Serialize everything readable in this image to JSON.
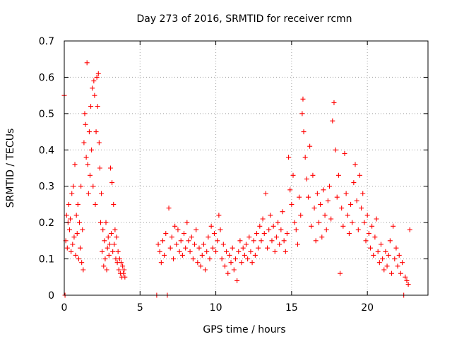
{
  "chart_data": {
    "type": "scatter",
    "title": "Day 273 of 2016, SRMTID for receiver rcmn",
    "xlabel": "GPS time / hours",
    "ylabel": "SRMTID / TECUs",
    "xlim": [
      0,
      24
    ],
    "ylim": [
      0,
      0.7
    ],
    "xticks": [
      0,
      5,
      10,
      15,
      20
    ],
    "yticks": [
      0,
      0.1,
      0.2,
      0.3,
      0.4,
      0.5,
      0.6,
      0.7
    ],
    "ytick_labels": [
      "0",
      "0.1",
      "0.2",
      "0.3",
      "0.4",
      "0.5",
      "0.6",
      "0.7"
    ],
    "grid": true,
    "marker": "+",
    "color": "#ff0000",
    "series": [
      {
        "name": "SRMTID",
        "points": [
          [
            0.0,
            0.55
          ],
          [
            0.05,
            0.0
          ],
          [
            0.1,
            0.15
          ],
          [
            0.15,
            0.22
          ],
          [
            0.2,
            0.13
          ],
          [
            0.25,
            0.2
          ],
          [
            0.3,
            0.25
          ],
          [
            0.35,
            0.18
          ],
          [
            0.4,
            0.21
          ],
          [
            0.45,
            0.12
          ],
          [
            0.5,
            0.28
          ],
          [
            0.55,
            0.14
          ],
          [
            0.6,
            0.3
          ],
          [
            0.65,
            0.16
          ],
          [
            0.7,
            0.36
          ],
          [
            0.75,
            0.11
          ],
          [
            0.8,
            0.22
          ],
          [
            0.85,
            0.17
          ],
          [
            0.9,
            0.25
          ],
          [
            0.95,
            0.1
          ],
          [
            1.0,
            0.2
          ],
          [
            1.05,
            0.13
          ],
          [
            1.1,
            0.3
          ],
          [
            1.15,
            0.09
          ],
          [
            1.2,
            0.18
          ],
          [
            1.25,
            0.07
          ],
          [
            1.3,
            0.42
          ],
          [
            1.35,
            0.5
          ],
          [
            1.4,
            0.47
          ],
          [
            1.45,
            0.38
          ],
          [
            1.5,
            0.64
          ],
          [
            1.55,
            0.36
          ],
          [
            1.6,
            0.28
          ],
          [
            1.65,
            0.45
          ],
          [
            1.7,
            0.33
          ],
          [
            1.75,
            0.52
          ],
          [
            1.8,
            0.4
          ],
          [
            1.85,
            0.57
          ],
          [
            1.9,
            0.3
          ],
          [
            1.95,
            0.59
          ],
          [
            2.0,
            0.55
          ],
          [
            2.05,
            0.25
          ],
          [
            2.1,
            0.45
          ],
          [
            2.15,
            0.6
          ],
          [
            2.2,
            0.52
          ],
          [
            2.25,
            0.61
          ],
          [
            2.3,
            0.42
          ],
          [
            2.35,
            0.35
          ],
          [
            2.4,
            0.2
          ],
          [
            2.45,
            0.28
          ],
          [
            2.5,
            0.12
          ],
          [
            2.55,
            0.18
          ],
          [
            2.6,
            0.08
          ],
          [
            2.65,
            0.15
          ],
          [
            2.7,
            0.1
          ],
          [
            2.75,
            0.2
          ],
          [
            2.8,
            0.07
          ],
          [
            2.85,
            0.13
          ],
          [
            2.9,
            0.16
          ],
          [
            2.95,
            0.11
          ],
          [
            3.0,
            0.14
          ],
          [
            3.05,
            0.35
          ],
          [
            3.1,
            0.17
          ],
          [
            3.15,
            0.31
          ],
          [
            3.2,
            0.12
          ],
          [
            3.25,
            0.25
          ],
          [
            3.3,
            0.14
          ],
          [
            3.35,
            0.18
          ],
          [
            3.4,
            0.1
          ],
          [
            3.45,
            0.16
          ],
          [
            3.5,
            0.09
          ],
          [
            3.55,
            0.12
          ],
          [
            3.6,
            0.07
          ],
          [
            3.65,
            0.1
          ],
          [
            3.7,
            0.06
          ],
          [
            3.75,
            0.09
          ],
          [
            3.8,
            0.05
          ],
          [
            3.85,
            0.08
          ],
          [
            3.9,
            0.06
          ],
          [
            3.95,
            0.07
          ],
          [
            4.0,
            0.05
          ],
          [
            6.1,
            0.0
          ],
          [
            6.2,
            0.14
          ],
          [
            6.3,
            0.12
          ],
          [
            6.4,
            0.09
          ],
          [
            6.5,
            0.15
          ],
          [
            6.6,
            0.11
          ],
          [
            6.7,
            0.17
          ],
          [
            6.8,
            0.0
          ],
          [
            6.9,
            0.24
          ],
          [
            7.0,
            0.13
          ],
          [
            7.1,
            0.16
          ],
          [
            7.2,
            0.1
          ],
          [
            7.3,
            0.19
          ],
          [
            7.4,
            0.14
          ],
          [
            7.5,
            0.18
          ],
          [
            7.6,
            0.12
          ],
          [
            7.7,
            0.15
          ],
          [
            7.8,
            0.11
          ],
          [
            7.9,
            0.17
          ],
          [
            8.0,
            0.13
          ],
          [
            8.1,
            0.2
          ],
          [
            8.2,
            0.15
          ],
          [
            8.3,
            0.12
          ],
          [
            8.4,
            0.16
          ],
          [
            8.5,
            0.1
          ],
          [
            8.6,
            0.14
          ],
          [
            8.7,
            0.18
          ],
          [
            8.8,
            0.09
          ],
          [
            8.9,
            0.13
          ],
          [
            9.0,
            0.08
          ],
          [
            9.1,
            0.11
          ],
          [
            9.2,
            0.14
          ],
          [
            9.3,
            0.07
          ],
          [
            9.4,
            0.12
          ],
          [
            9.5,
            0.16
          ],
          [
            9.6,
            0.1
          ],
          [
            9.7,
            0.19
          ],
          [
            9.8,
            0.13
          ],
          [
            9.9,
            0.17
          ],
          [
            10.0,
            0.12
          ],
          [
            10.1,
            0.15
          ],
          [
            10.2,
            0.22
          ],
          [
            10.3,
            0.18
          ],
          [
            10.4,
            0.1
          ],
          [
            10.5,
            0.14
          ],
          [
            10.6,
            0.08
          ],
          [
            10.7,
            0.12
          ],
          [
            10.8,
            0.06
          ],
          [
            10.9,
            0.11
          ],
          [
            11.0,
            0.09
          ],
          [
            11.1,
            0.13
          ],
          [
            11.2,
            0.07
          ],
          [
            11.3,
            0.1
          ],
          [
            11.4,
            0.04
          ],
          [
            11.5,
            0.12
          ],
          [
            11.6,
            0.15
          ],
          [
            11.7,
            0.09
          ],
          [
            11.8,
            0.13
          ],
          [
            11.9,
            0.11
          ],
          [
            12.0,
            0.14
          ],
          [
            12.1,
            0.1
          ],
          [
            12.2,
            0.16
          ],
          [
            12.3,
            0.12
          ],
          [
            12.4,
            0.09
          ],
          [
            12.5,
            0.15
          ],
          [
            12.6,
            0.11
          ],
          [
            12.7,
            0.17
          ],
          [
            12.8,
            0.13
          ],
          [
            12.9,
            0.19
          ],
          [
            13.0,
            0.15
          ],
          [
            13.1,
            0.21
          ],
          [
            13.2,
            0.17
          ],
          [
            13.3,
            0.28
          ],
          [
            13.4,
            0.13
          ],
          [
            13.5,
            0.18
          ],
          [
            13.6,
            0.22
          ],
          [
            13.7,
            0.15
          ],
          [
            13.8,
            0.19
          ],
          [
            13.9,
            0.12
          ],
          [
            14.0,
            0.16
          ],
          [
            14.1,
            0.2
          ],
          [
            14.2,
            0.14
          ],
          [
            14.3,
            0.18
          ],
          [
            14.4,
            0.23
          ],
          [
            14.5,
            0.15
          ],
          [
            14.6,
            0.12
          ],
          [
            14.7,
            0.17
          ],
          [
            14.8,
            0.38
          ],
          [
            14.9,
            0.29
          ],
          [
            15.0,
            0.25
          ],
          [
            15.1,
            0.33
          ],
          [
            15.2,
            0.2
          ],
          [
            15.3,
            0.18
          ],
          [
            15.4,
            0.14
          ],
          [
            15.5,
            0.27
          ],
          [
            15.6,
            0.22
          ],
          [
            15.7,
            0.5
          ],
          [
            15.75,
            0.54
          ],
          [
            15.8,
            0.45
          ],
          [
            15.9,
            0.38
          ],
          [
            16.0,
            0.32
          ],
          [
            16.1,
            0.27
          ],
          [
            16.2,
            0.41
          ],
          [
            16.3,
            0.19
          ],
          [
            16.4,
            0.33
          ],
          [
            16.5,
            0.24
          ],
          [
            16.6,
            0.15
          ],
          [
            16.7,
            0.28
          ],
          [
            16.8,
            0.2
          ],
          [
            16.9,
            0.25
          ],
          [
            17.0,
            0.16
          ],
          [
            17.1,
            0.29
          ],
          [
            17.2,
            0.22
          ],
          [
            17.3,
            0.18
          ],
          [
            17.4,
            0.26
          ],
          [
            17.5,
            0.3
          ],
          [
            17.6,
            0.21
          ],
          [
            17.7,
            0.48
          ],
          [
            17.8,
            0.53
          ],
          [
            17.9,
            0.4
          ],
          [
            18.0,
            0.27
          ],
          [
            18.1,
            0.33
          ],
          [
            18.2,
            0.06
          ],
          [
            18.3,
            0.24
          ],
          [
            18.4,
            0.19
          ],
          [
            18.5,
            0.39
          ],
          [
            18.6,
            0.28
          ],
          [
            18.7,
            0.22
          ],
          [
            18.8,
            0.17
          ],
          [
            18.9,
            0.25
          ],
          [
            19.0,
            0.2
          ],
          [
            19.1,
            0.31
          ],
          [
            19.2,
            0.36
          ],
          [
            19.3,
            0.26
          ],
          [
            19.4,
            0.18
          ],
          [
            19.5,
            0.33
          ],
          [
            19.6,
            0.24
          ],
          [
            19.7,
            0.28
          ],
          [
            19.8,
            0.2
          ],
          [
            19.9,
            0.15
          ],
          [
            20.0,
            0.22
          ],
          [
            20.1,
            0.17
          ],
          [
            20.2,
            0.13
          ],
          [
            20.3,
            0.19
          ],
          [
            20.4,
            0.11
          ],
          [
            20.5,
            0.16
          ],
          [
            20.6,
            0.21
          ],
          [
            20.7,
            0.12
          ],
          [
            20.8,
            0.09
          ],
          [
            20.9,
            0.14
          ],
          [
            21.0,
            0.1
          ],
          [
            21.1,
            0.07
          ],
          [
            21.2,
            0.12
          ],
          [
            21.3,
            0.08
          ],
          [
            21.4,
            0.11
          ],
          [
            21.5,
            0.15
          ],
          [
            21.6,
            0.06
          ],
          [
            21.7,
            0.19
          ],
          [
            21.8,
            0.1
          ],
          [
            21.9,
            0.13
          ],
          [
            22.0,
            0.08
          ],
          [
            22.1,
            0.11
          ],
          [
            22.2,
            0.06
          ],
          [
            22.3,
            0.09
          ],
          [
            22.4,
            0.0
          ],
          [
            22.5,
            0.05
          ],
          [
            22.6,
            0.04
          ],
          [
            22.7,
            0.03
          ],
          [
            22.8,
            0.18
          ]
        ]
      }
    ]
  }
}
